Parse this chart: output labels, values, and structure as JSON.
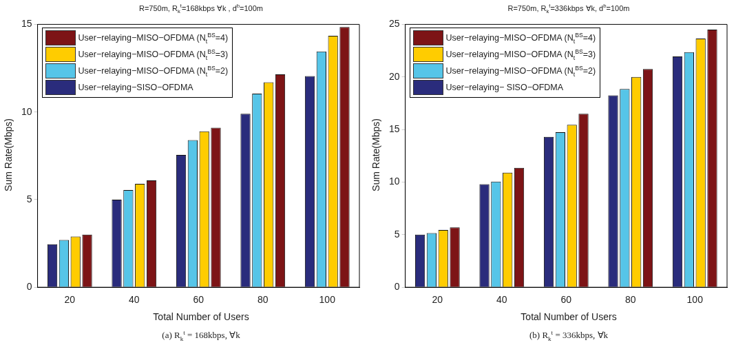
{
  "chart_data": [
    {
      "type": "bar",
      "title": "R=750m, R$_{k}$$^{t}$=168kbps ∀k , d$^{b}$=100m",
      "xlabel": "Total Number of Users",
      "ylabel": "Sum Rate(Mbps)",
      "categories": [
        "20",
        "40",
        "60",
        "80",
        "100"
      ],
      "ylim": [
        0,
        15
      ],
      "yticks": [
        0,
        5,
        10,
        15
      ],
      "grid": false,
      "legend": "top left",
      "annotations": [
        "(a)  R$_{k}$$^{t}$ = 168kbps, ∀k"
      ],
      "series": [
        {
          "name": "User−relaying−SISO−OFDMA",
          "color": "#2a2c7c",
          "values": [
            2.45,
            5.0,
            7.55,
            9.9,
            12.05
          ]
        },
        {
          "name": "User−relaying−MISO−OFDMA (N$_{t}$$^{BS}$=2)",
          "color": "#56c5e8",
          "values": [
            2.7,
            5.55,
            8.4,
            11.05,
            13.45
          ]
        },
        {
          "name": "User−relaying−MISO−OFDMA (N$_{t}$$^{BS}$=3)",
          "color": "#ffcc00",
          "values": [
            2.9,
            5.9,
            8.9,
            11.7,
            14.35
          ]
        },
        {
          "name": "User−relaying−MISO−OFDMA (N$_{t}$$^{BS}$=4)",
          "color": "#7d1416",
          "values": [
            3.0,
            6.1,
            9.1,
            12.15,
            14.85
          ]
        }
      ]
    },
    {
      "type": "bar",
      "title": "R=750m, R$_{k}$$^{t}$=336kbps ∀k, d$^{b}$=100m",
      "xlabel": "Total Number of Users",
      "ylabel": "Sum Rate(Mbps)",
      "categories": [
        "20",
        "40",
        "60",
        "80",
        "100"
      ],
      "ylim": [
        0,
        25
      ],
      "yticks": [
        0,
        5,
        10,
        15,
        20,
        25
      ],
      "grid": false,
      "legend": "top left",
      "annotations": [
        "(b)  R$_{k}$$^{t}$ = 336kbps, ∀k"
      ],
      "series": [
        {
          "name": "User−relaying− SISO−OFDMA",
          "color": "#2a2c7c",
          "values": [
            5.0,
            9.8,
            14.3,
            18.25,
            21.95
          ]
        },
        {
          "name": "User−relaying−MISO−OFDMA (N$_{t}$$^{BS}$=2)",
          "color": "#56c5e8",
          "values": [
            5.15,
            10.05,
            14.75,
            18.85,
            22.35
          ]
        },
        {
          "name": "User−relaying−MISO−OFDMA (N$_{t}$$^{BS}$=3)",
          "color": "#ffcc00",
          "values": [
            5.45,
            10.9,
            15.45,
            20.0,
            23.65
          ]
        },
        {
          "name": "User−relaying−MISO−OFDMA (N$_{t}$$^{BS}$=4)",
          "color": "#7d1416",
          "values": [
            5.7,
            11.35,
            16.5,
            20.75,
            24.5
          ]
        }
      ]
    }
  ]
}
